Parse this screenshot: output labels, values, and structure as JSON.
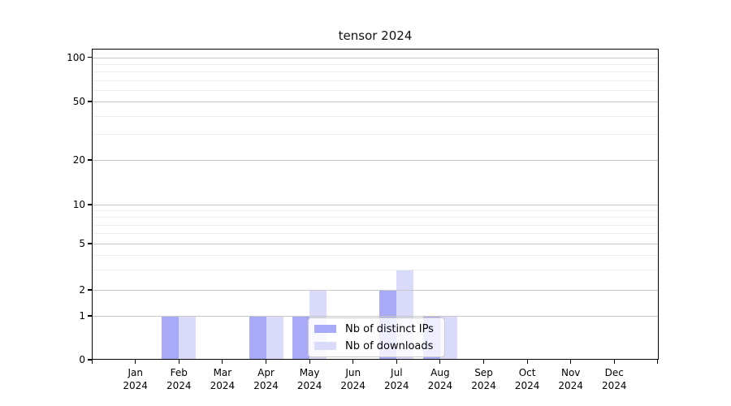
{
  "chart_data": {
    "type": "bar",
    "title": "tensor 2024",
    "categories": [
      "Jan 2024",
      "Feb 2024",
      "Mar 2024",
      "Apr 2024",
      "May 2024",
      "Jun 2024",
      "Jul 2024",
      "Aug 2024",
      "Sep 2024",
      "Oct 2024",
      "Nov 2024",
      "Dec 2024"
    ],
    "series": [
      {
        "name": "Nb of distinct IPs",
        "color": "#a8a9f7",
        "values": [
          0,
          1,
          0,
          1,
          1,
          0,
          2,
          1,
          0,
          0,
          0,
          0
        ]
      },
      {
        "name": "Nb of downloads",
        "color": "#dadbfa",
        "values": [
          0,
          1,
          0,
          1,
          2,
          0,
          3,
          1,
          0,
          0,
          0,
          0
        ]
      }
    ],
    "xlabel": "",
    "ylabel": "",
    "yaxis": {
      "scale": "symlog",
      "ticks": [
        0,
        1,
        2,
        5,
        10,
        20,
        50,
        100
      ],
      "minor_gridlines": [
        3,
        4,
        6,
        7,
        8,
        9,
        30,
        40,
        60,
        70,
        80,
        90
      ],
      "ylim": [
        0,
        115
      ]
    },
    "grid": "major+minor",
    "legend": {
      "position": "lower center",
      "entries": [
        "Nb of distinct IPs",
        "Nb of downloads"
      ]
    }
  }
}
